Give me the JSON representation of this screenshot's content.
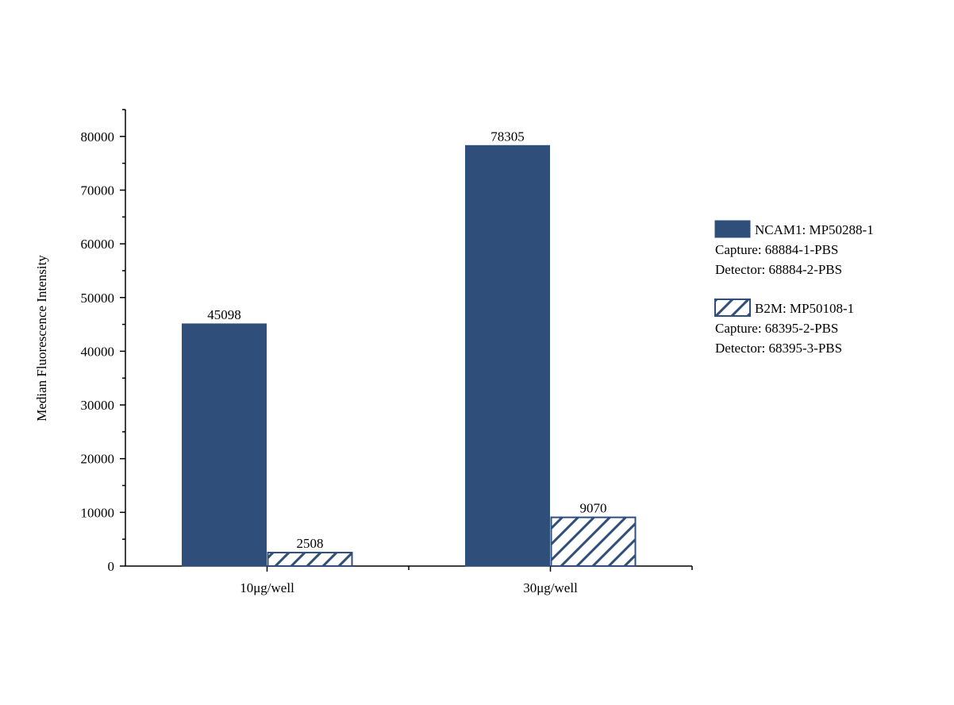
{
  "chart_data": {
    "type": "bar",
    "title": "",
    "xlabel": "",
    "ylabel": "Median Fluorescence Intensity",
    "categories": [
      "10μg/well",
      "30μg/well"
    ],
    "ylim": [
      0,
      85000
    ],
    "yticks": [
      0,
      10000,
      20000,
      30000,
      40000,
      50000,
      60000,
      70000,
      80000
    ],
    "ytick_labels": [
      "0",
      "10000",
      "20000",
      "30000",
      "40000",
      "50000",
      "60000",
      "70000",
      "80000"
    ],
    "grid": false,
    "legend_position": "right",
    "series": [
      {
        "name": "NCAM1: MP50288-1",
        "values": [
          45098,
          78305
        ],
        "labels": [
          "45098",
          "78305"
        ],
        "fill": "solid",
        "color": "#2f4f7a",
        "legend_lines": [
          "Capture: 68884-1-PBS",
          "Detector: 68884-2-PBS"
        ]
      },
      {
        "name": "B2M: MP50108-1",
        "values": [
          2508,
          9070
        ],
        "labels": [
          "2508",
          "9070"
        ],
        "fill": "hatched",
        "color": "#2f4f7a",
        "legend_lines": [
          "Capture: 68395-2-PBS",
          "Detector: 68395-3-PBS"
        ]
      }
    ]
  }
}
